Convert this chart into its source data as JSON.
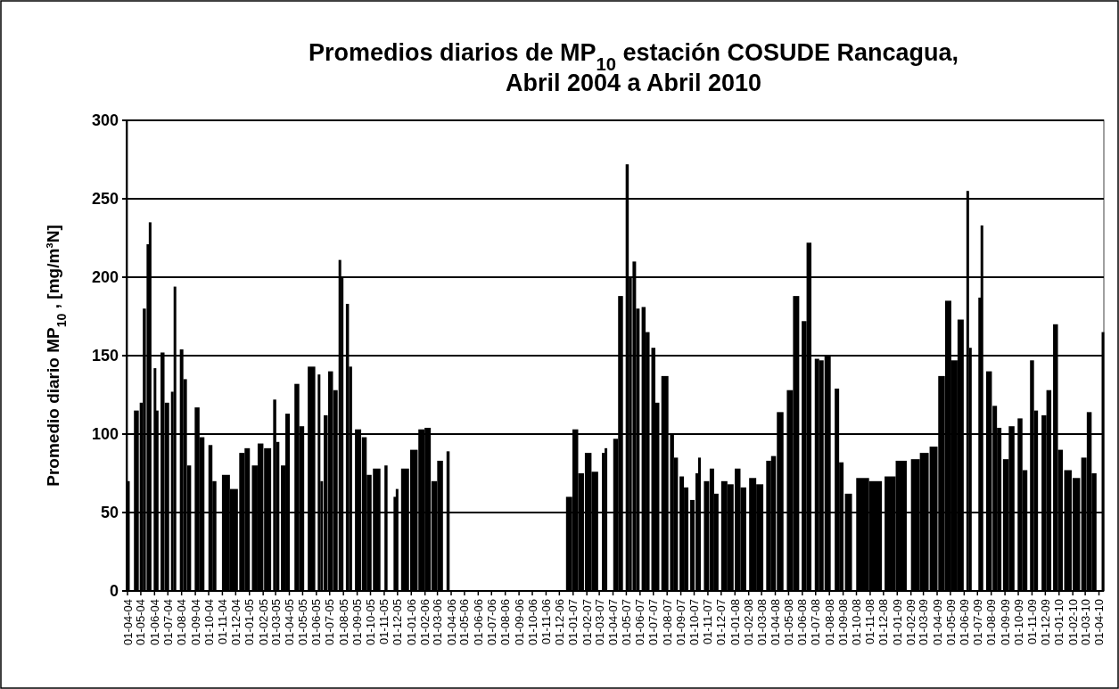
{
  "chart_data": {
    "type": "bar",
    "title": "Promedios diarios de MP$_{10}$ estación COSUDE Rancagua,\nAbril 2004 a Abril 2010",
    "ylabel": "Promedio diario  MP$_{10}$ , [mg/m³N]",
    "color": "#000000",
    "grid": "y",
    "xlim": [
      "2004-04-01",
      "2010-04-12"
    ],
    "ylim": [
      0,
      300
    ],
    "yticks": [
      0,
      50,
      100,
      150,
      200,
      250,
      300
    ],
    "xticks": [
      {
        "value": "2004-04-01",
        "label": "01-04-04"
      },
      {
        "value": "2004-05-01",
        "label": "01-05-04"
      },
      {
        "value": "2004-06-01",
        "label": "01-06-04"
      },
      {
        "value": "2004-07-01",
        "label": "01-07-04"
      },
      {
        "value": "2004-08-01",
        "label": "01-08-04"
      },
      {
        "value": "2004-09-01",
        "label": "01-09-04"
      },
      {
        "value": "2004-10-01",
        "label": "01-10-04"
      },
      {
        "value": "2004-11-01",
        "label": "01-11-04"
      },
      {
        "value": "2004-12-01",
        "label": "01-12-04"
      },
      {
        "value": "2005-01-01",
        "label": "01-01-05"
      },
      {
        "value": "2005-02-01",
        "label": "01-02-05"
      },
      {
        "value": "2005-03-01",
        "label": "01-03-05"
      },
      {
        "value": "2005-04-01",
        "label": "01-04-05"
      },
      {
        "value": "2005-05-01",
        "label": "01-05-05"
      },
      {
        "value": "2005-06-01",
        "label": "01-06-05"
      },
      {
        "value": "2005-07-01",
        "label": "01-07-05"
      },
      {
        "value": "2005-08-01",
        "label": "01-08-05"
      },
      {
        "value": "2005-09-01",
        "label": "01-09-05"
      },
      {
        "value": "2005-10-01",
        "label": "01-10-05"
      },
      {
        "value": "2005-11-01",
        "label": "01-11-05"
      },
      {
        "value": "2005-12-01",
        "label": "01-12-05"
      },
      {
        "value": "2006-01-01",
        "label": "01-01-06"
      },
      {
        "value": "2006-02-01",
        "label": "01-02-06"
      },
      {
        "value": "2006-03-01",
        "label": "01-03-06"
      },
      {
        "value": "2006-04-01",
        "label": "01-04-06"
      },
      {
        "value": "2006-05-01",
        "label": "01-05-06"
      },
      {
        "value": "2006-06-01",
        "label": "01-06-06"
      },
      {
        "value": "2006-07-01",
        "label": "01-07-06"
      },
      {
        "value": "2006-08-01",
        "label": "01-08-06"
      },
      {
        "value": "2006-09-01",
        "label": "01-09-06"
      },
      {
        "value": "2006-10-01",
        "label": "01-10-06"
      },
      {
        "value": "2006-11-01",
        "label": "01-11-06"
      },
      {
        "value": "2006-12-01",
        "label": "01-12-06"
      },
      {
        "value": "2007-01-01",
        "label": "01-01-07"
      },
      {
        "value": "2007-02-01",
        "label": "01-02-07"
      },
      {
        "value": "2007-03-01",
        "label": "01-03-07"
      },
      {
        "value": "2007-04-01",
        "label": "01-04-07"
      },
      {
        "value": "2007-05-01",
        "label": "01-05-07"
      },
      {
        "value": "2007-06-01",
        "label": "01-06-07"
      },
      {
        "value": "2007-07-01",
        "label": "01-07-07"
      },
      {
        "value": "2007-08-01",
        "label": "01-08-07"
      },
      {
        "value": "2007-09-01",
        "label": "01-09-07"
      },
      {
        "value": "2007-10-01",
        "label": "01-10-07"
      },
      {
        "value": "2007-11-01",
        "label": "01-11-07"
      },
      {
        "value": "2007-12-01",
        "label": "01-12-07"
      },
      {
        "value": "2008-01-01",
        "label": "01-01-08"
      },
      {
        "value": "2008-02-01",
        "label": "01-02-08"
      },
      {
        "value": "2008-03-01",
        "label": "01-03-08"
      },
      {
        "value": "2008-04-01",
        "label": "01-04-08"
      },
      {
        "value": "2008-05-01",
        "label": "01-05-08"
      },
      {
        "value": "2008-06-01",
        "label": "01-06-08"
      },
      {
        "value": "2008-07-01",
        "label": "01-07-08"
      },
      {
        "value": "2008-08-01",
        "label": "01-08-08"
      },
      {
        "value": "2008-09-01",
        "label": "01-09-08"
      },
      {
        "value": "2008-10-01",
        "label": "01-10-08"
      },
      {
        "value": "2008-11-01",
        "label": "01-11-08"
      },
      {
        "value": "2008-12-01",
        "label": "01-12-08"
      },
      {
        "value": "2009-01-01",
        "label": "01-01-09"
      },
      {
        "value": "2009-02-01",
        "label": "01-02-09"
      },
      {
        "value": "2009-03-01",
        "label": "01-03-09"
      },
      {
        "value": "2009-04-01",
        "label": "01-04-09"
      },
      {
        "value": "2009-05-01",
        "label": "01-05-09"
      },
      {
        "value": "2009-06-01",
        "label": "01-06-09"
      },
      {
        "value": "2009-07-01",
        "label": "01-07-09"
      },
      {
        "value": "2009-08-01",
        "label": "01-08-09"
      },
      {
        "value": "2009-09-01",
        "label": "01-09-09"
      },
      {
        "value": "2009-10-01",
        "label": "01-10-09"
      },
      {
        "value": "2009-11-01",
        "label": "01-11-09"
      },
      {
        "value": "2009-12-01",
        "label": "01-12-09"
      },
      {
        "value": "2010-01-01",
        "label": "01-01-10"
      },
      {
        "value": "2010-02-01",
        "label": "01-02-10"
      },
      {
        "value": "2010-03-01",
        "label": "01-03-10"
      },
      {
        "value": "2010-04-01",
        "label": "01-04-10"
      }
    ],
    "x": [
      "2004-04-03",
      "2004-04-21",
      "2004-05-02",
      "2004-05-09",
      "2004-05-17",
      "2004-05-22",
      "2004-06-02",
      "2004-06-07",
      "2004-06-10",
      "2004-06-19",
      "2004-06-29",
      "2004-07-11",
      "2004-07-17",
      "2004-08-01",
      "2004-08-09",
      "2004-08-18",
      "2004-09-05",
      "2004-09-16",
      "2004-10-05",
      "2004-10-14",
      "2004-11-09",
      "2004-11-27",
      "2004-12-15",
      "2004-12-27",
      "2005-01-13",
      "2005-01-26",
      "2005-02-11",
      "2005-02-27",
      "2005-03-06",
      "2005-03-18",
      "2005-03-28",
      "2005-04-18",
      "2005-04-29",
      "2005-05-21",
      "2005-06-07",
      "2005-06-13",
      "2005-06-22",
      "2005-07-03",
      "2005-07-14",
      "2005-07-24",
      "2005-07-29",
      "2005-08-10",
      "2005-08-17",
      "2005-09-03",
      "2005-09-17",
      "2005-09-28",
      "2005-10-15",
      "2005-11-05",
      "2005-11-12",
      "2005-11-25",
      "2005-11-30",
      "2005-12-18",
      "2006-01-07",
      "2006-01-24",
      "2006-02-07",
      "2006-02-22",
      "2006-03-07",
      "2006-03-25",
      "2006-04-01",
      "2006-12-23",
      "2007-01-06",
      "2007-01-19",
      "2007-02-04",
      "2007-02-19",
      "2007-03-10",
      "2007-03-16",
      "2007-04-07",
      "2007-04-18",
      "2007-05-03",
      "2007-05-10",
      "2007-05-19",
      "2007-05-27",
      "2007-06-09",
      "2007-06-18",
      "2007-07-01",
      "2007-07-10",
      "2007-07-27",
      "2007-08-12",
      "2007-08-21",
      "2007-09-03",
      "2007-09-13",
      "2007-09-27",
      "2007-10-07",
      "2007-10-13",
      "2007-10-29",
      "2007-11-10",
      "2007-11-20",
      "2007-12-08",
      "2007-12-22",
      "2008-01-07",
      "2008-01-20",
      "2008-02-10",
      "2008-02-26",
      "2008-03-17",
      "2008-03-28",
      "2008-04-12",
      "2008-05-04",
      "2008-05-18",
      "2008-06-05",
      "2008-06-16",
      "2008-07-04",
      "2008-07-14",
      "2008-07-28",
      "2008-08-18",
      "2008-08-28",
      "2008-09-13",
      "2008-10-15",
      "2008-11-13",
      "2008-12-16",
      "2009-01-10",
      "2009-02-11",
      "2009-03-03",
      "2009-03-24",
      "2009-04-11",
      "2009-04-26",
      "2009-05-10",
      "2009-05-24",
      "2009-06-09",
      "2009-06-15",
      "2009-07-06",
      "2009-07-11",
      "2009-07-27",
      "2009-08-09",
      "2009-08-19",
      "2009-09-03",
      "2009-09-16",
      "2009-10-05",
      "2009-10-16",
      "2009-11-01",
      "2009-11-10",
      "2009-11-28",
      "2009-12-09",
      "2009-12-24",
      "2010-01-04",
      "2010-01-21",
      "2010-02-09",
      "2010-02-26",
      "2010-03-10",
      "2010-03-21",
      "2010-04-10"
    ],
    "values": [
      70,
      115,
      120,
      180,
      221,
      235,
      142,
      115,
      null,
      152,
      120,
      127,
      194,
      154,
      135,
      80,
      117,
      98,
      93,
      70,
      74,
      65,
      88,
      91,
      80,
      94,
      91,
      122,
      95,
      80,
      113,
      132,
      105,
      143,
      138,
      70,
      112,
      140,
      128,
      211,
      200,
      183,
      143,
      103,
      98,
      74,
      78,
      80,
      null,
      60,
      65,
      78,
      90,
      103,
      104,
      70,
      83,
      89,
      null,
      60,
      103,
      75,
      88,
      76,
      88,
      91,
      97,
      188,
      272,
      200,
      210,
      180,
      181,
      165,
      155,
      120,
      137,
      100,
      85,
      73,
      66,
      58,
      75,
      85,
      70,
      78,
      62,
      70,
      68,
      78,
      66,
      72,
      68,
      83,
      86,
      114,
      128,
      188,
      172,
      222,
      148,
      147,
      150,
      129,
      82,
      62,
      72,
      70,
      73,
      83,
      84,
      88,
      92,
      137,
      185,
      147,
      173,
      255,
      155,
      187,
      233,
      140,
      118,
      104,
      84,
      105,
      110,
      77,
      147,
      115,
      112,
      128,
      170,
      90,
      77,
      72,
      85,
      114,
      75,
      165
    ]
  }
}
